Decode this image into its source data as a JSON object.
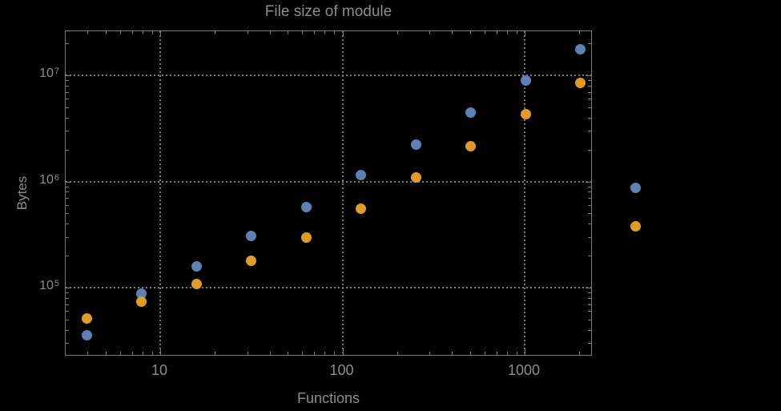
{
  "colors": {
    "background": "#000000",
    "text": "#8d8d8d",
    "frame": "#7b7b7b",
    "grid": "#7a7a7a",
    "series_blue": "#5e81b5",
    "series_orange": "#e19c24"
  },
  "chart_data": {
    "type": "scatter",
    "title": "File size of module",
    "xlabel": "Functions",
    "ylabel": "Bytes",
    "x_scale": "log",
    "y_scale": "log",
    "xlim": [
      3.1,
      2370
    ],
    "ylim": [
      22500,
      26000000
    ],
    "grid": "dotted lines at decade values on both axes, frame with mirrored inward ticks",
    "legend": "none",
    "x_ticks": [
      {
        "value": 10,
        "label": "10"
      },
      {
        "value": 100,
        "label": "100"
      },
      {
        "value": 1000,
        "label": "1000"
      }
    ],
    "y_ticks": [
      {
        "value": 100000,
        "base": "10",
        "exponent": "5"
      },
      {
        "value": 1000000,
        "base": "10",
        "exponent": "6"
      },
      {
        "value": 10000000,
        "base": "10",
        "exponent": "7"
      }
    ],
    "series": [
      {
        "name": "series-blue",
        "color": "#5e81b5",
        "points": [
          [
            4,
            35000
          ],
          [
            8,
            87000
          ],
          [
            16,
            155000
          ],
          [
            32,
            300000
          ],
          [
            64,
            560000
          ],
          [
            128,
            1120000
          ],
          [
            256,
            2200000
          ],
          [
            512,
            4400000
          ],
          [
            1024,
            8850000
          ],
          [
            2048,
            17400000
          ],
          [
            4096,
            860000
          ]
        ]
      },
      {
        "name": "series-orange",
        "color": "#e19c24",
        "points": [
          [
            4,
            50000
          ],
          [
            8,
            72000
          ],
          [
            16,
            107000
          ],
          [
            32,
            175000
          ],
          [
            64,
            290000
          ],
          [
            128,
            540000
          ],
          [
            256,
            1070000
          ],
          [
            512,
            2100000
          ],
          [
            1024,
            4200000
          ],
          [
            2048,
            8300000
          ],
          [
            4096,
            370000
          ]
        ]
      }
    ]
  }
}
